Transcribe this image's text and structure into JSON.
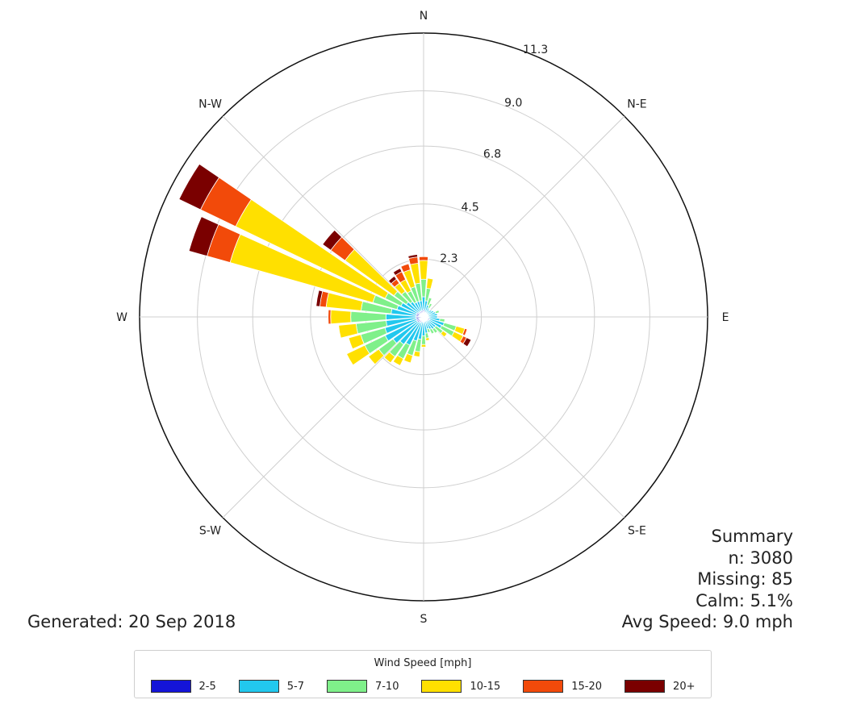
{
  "chart_data": {
    "type": "windrose",
    "directions": [
      "N",
      "N-E",
      "E",
      "S-E",
      "S",
      "S-W",
      "W",
      "N-W"
    ],
    "radial_ticks": [
      2.3,
      4.5,
      6.8,
      9.0,
      11.3
    ],
    "rmax": 11.3,
    "legend_title": "Wind Speed [mph]",
    "bins": [
      {
        "label": "2-5",
        "color": "#1414d8"
      },
      {
        "label": "5-7",
        "color": "#22c8ee"
      },
      {
        "label": "7-10",
        "color": "#7ff08a"
      },
      {
        "label": "10-15",
        "color": "#ffe000"
      },
      {
        "label": "15-20",
        "color": "#f24a0a"
      },
      {
        "label": "20+",
        "color": "#7a0000"
      }
    ],
    "sectors": [
      {
        "dir": 0,
        "values": [
          0.3,
          0.5,
          0.7,
          0.75,
          0.15,
          0.0
        ]
      },
      {
        "dir": 10,
        "values": [
          0.25,
          0.4,
          0.5,
          0.4,
          0.0,
          0.0
        ]
      },
      {
        "dir": 20,
        "values": [
          0.2,
          0.3,
          0.3,
          0.0,
          0.0,
          0.0
        ]
      },
      {
        "dir": 30,
        "values": [
          0.15,
          0.25,
          0.2,
          0.0,
          0.0,
          0.0
        ]
      },
      {
        "dir": 40,
        "values": [
          0.15,
          0.2,
          0.0,
          0.0,
          0.0,
          0.0
        ]
      },
      {
        "dir": 50,
        "values": [
          0.15,
          0.25,
          0.0,
          0.0,
          0.0,
          0.0
        ]
      },
      {
        "dir": 60,
        "values": [
          0.15,
          0.3,
          0.0,
          0.0,
          0.0,
          0.0
        ]
      },
      {
        "dir": 70,
        "values": [
          0.15,
          0.35,
          0.15,
          0.0,
          0.0,
          0.0
        ]
      },
      {
        "dir": 80,
        "values": [
          0.15,
          0.4,
          0.0,
          0.0,
          0.0,
          0.0
        ]
      },
      {
        "dir": 90,
        "values": [
          0.15,
          0.4,
          0.0,
          0.0,
          0.0,
          0.0
        ]
      },
      {
        "dir": 100,
        "values": [
          0.2,
          0.45,
          0.2,
          0.0,
          0.0,
          0.0
        ]
      },
      {
        "dir": 110,
        "values": [
          0.25,
          0.6,
          0.5,
          0.35,
          0.1,
          0.0
        ]
      },
      {
        "dir": 120,
        "values": [
          0.25,
          0.55,
          0.55,
          0.4,
          0.15,
          0.2
        ]
      },
      {
        "dir": 130,
        "values": [
          0.2,
          0.4,
          0.35,
          0.2,
          0.0,
          0.0
        ]
      },
      {
        "dir": 140,
        "values": [
          0.2,
          0.4,
          0.2,
          0.0,
          0.0,
          0.0
        ]
      },
      {
        "dir": 150,
        "values": [
          0.15,
          0.4,
          0.2,
          0.0,
          0.0,
          0.0
        ]
      },
      {
        "dir": 160,
        "values": [
          0.15,
          0.35,
          0.15,
          0.0,
          0.0,
          0.0
        ]
      },
      {
        "dir": 170,
        "values": [
          0.2,
          0.45,
          0.2,
          0.1,
          0.0,
          0.0
        ]
      },
      {
        "dir": 180,
        "values": [
          0.2,
          0.55,
          0.35,
          0.1,
          0.0,
          0.0
        ]
      },
      {
        "dir": 190,
        "values": [
          0.2,
          0.7,
          0.5,
          0.2,
          0.0,
          0.0
        ]
      },
      {
        "dir": 200,
        "values": [
          0.2,
          0.8,
          0.6,
          0.3,
          0.0,
          0.0
        ]
      },
      {
        "dir": 210,
        "values": [
          0.25,
          1.0,
          0.6,
          0.3,
          0.0,
          0.0
        ]
      },
      {
        "dir": 220,
        "values": [
          0.25,
          1.1,
          0.6,
          0.3,
          0.0,
          0.0
        ]
      },
      {
        "dir": 230,
        "values": [
          0.3,
          1.2,
          0.7,
          0.5,
          0.0,
          0.0
        ]
      },
      {
        "dir": 240,
        "values": [
          0.3,
          1.4,
          0.9,
          0.8,
          0.0,
          0.0
        ]
      },
      {
        "dir": 250,
        "values": [
          0.3,
          1.3,
          1.0,
          0.5,
          0.0,
          0.0
        ]
      },
      {
        "dir": 260,
        "values": [
          0.3,
          1.2,
          1.2,
          0.7,
          0.0,
          0.0
        ]
      },
      {
        "dir": 270,
        "values": [
          0.3,
          1.2,
          1.4,
          0.8,
          0.1,
          0.0
        ]
      },
      {
        "dir": 280,
        "values": [
          0.3,
          1.0,
          1.2,
          1.4,
          0.25,
          0.15
        ]
      },
      {
        "dir": 290,
        "values": [
          0.3,
          0.8,
          1.0,
          5.9,
          0.95,
          0.75
        ]
      },
      {
        "dir": 300,
        "values": [
          0.3,
          0.7,
          0.7,
          6.6,
          1.55,
          0.95
        ]
      },
      {
        "dir": 310,
        "values": [
          0.25,
          0.6,
          0.6,
          2.4,
          0.7,
          0.4
        ]
      },
      {
        "dir": 320,
        "values": [
          0.25,
          0.5,
          0.5,
          0.4,
          0.2,
          0.15
        ]
      },
      {
        "dir": 330,
        "values": [
          0.25,
          0.4,
          0.5,
          0.5,
          0.35,
          0.15
        ]
      },
      {
        "dir": 340,
        "values": [
          0.25,
          0.4,
          0.6,
          0.7,
          0.25,
          0.0
        ]
      },
      {
        "dir": 350,
        "values": [
          0.25,
          0.4,
          0.7,
          0.8,
          0.25,
          0.1
        ]
      }
    ]
  },
  "summary": {
    "title": "Summary",
    "n": "n: 3080",
    "missing": "Missing: 85",
    "calm": "Calm: 5.1%",
    "avg_speed": "Avg Speed: 9.0 mph"
  },
  "generated": "Generated: 20 Sep 2018"
}
